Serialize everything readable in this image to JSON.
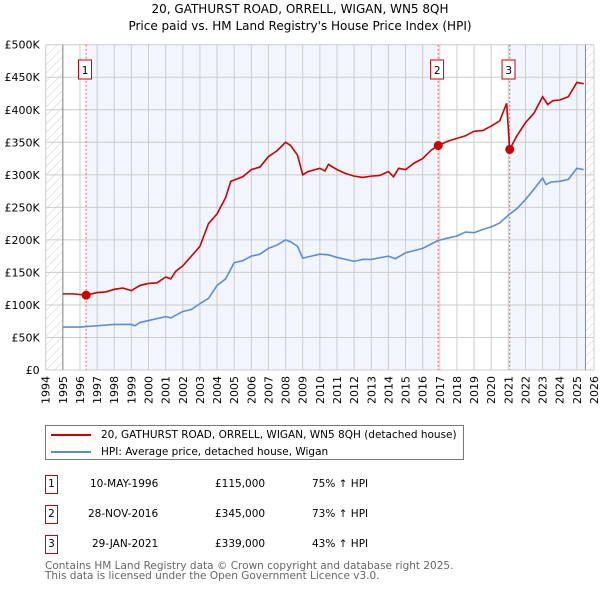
{
  "chart_data": {
    "type": "line",
    "title": "20, GATHURST ROAD, ORRELL, WIGAN, WN5 8QH",
    "subtitle": "Price paid vs. HM Land Registry's House Price Index (HPI)",
    "xlim": [
      1994,
      2026
    ],
    "ylim": [
      0,
      500000
    ],
    "x_ticks": [
      "1994",
      "1995",
      "1996",
      "1997",
      "1998",
      "1999",
      "2000",
      "2001",
      "2002",
      "2003",
      "2004",
      "2005",
      "2006",
      "2007",
      "2008",
      "2009",
      "2010",
      "2011",
      "2012",
      "2013",
      "2014",
      "2015",
      "2016",
      "2017",
      "2018",
      "2019",
      "2020",
      "2021",
      "2022",
      "2023",
      "2024",
      "2025",
      "2026"
    ],
    "y_ticks": [
      {
        "v": 0,
        "label": "£0"
      },
      {
        "v": 50000,
        "label": "£50K"
      },
      {
        "v": 100000,
        "label": "£100K"
      },
      {
        "v": 150000,
        "label": "£150K"
      },
      {
        "v": 200000,
        "label": "£200K"
      },
      {
        "v": 250000,
        "label": "£250K"
      },
      {
        "v": 300000,
        "label": "£300K"
      },
      {
        "v": 350000,
        "label": "£350K"
      },
      {
        "v": 400000,
        "label": "£400K"
      },
      {
        "v": 450000,
        "label": "£450K"
      },
      {
        "v": 500000,
        "label": "£500K"
      }
    ],
    "grid": true,
    "data_start": 1995,
    "data_end": 2025.5,
    "series": [
      {
        "name": "20, GATHURST ROAD, ORRELL, WIGAN, WN5 8QH (detached house)",
        "color": "#cc0000",
        "x": [
          1995,
          1995.6,
          1996.36,
          1997,
          1997.5,
          1998,
          1998.5,
          1999,
          1999.5,
          2000,
          2000.5,
          2001,
          2001.3,
          2001.6,
          2002,
          2002.5,
          2003,
          2003.5,
          2004,
          2004.5,
          2004.8,
          2005.5,
          2006,
          2006.5,
          2007,
          2007.5,
          2008,
          2008.3,
          2008.7,
          2009,
          2009.3,
          2010,
          2010.3,
          2010.5,
          2011,
          2011.5,
          2012,
          2012.5,
          2013,
          2013.5,
          2014,
          2014.3,
          2014.6,
          2015,
          2015.5,
          2016,
          2016.5,
          2016.9,
          2017.5,
          2018,
          2018.5,
          2019,
          2019.5,
          2020,
          2020.5,
          2020.9,
          2021.08,
          2021.5,
          2022,
          2022.5,
          2023,
          2023.3,
          2023.6,
          2024,
          2024.5,
          2025,
          2025.4
        ],
        "y": [
          117000,
          117000,
          115000,
          119000,
          120000,
          124000,
          126000,
          122000,
          130000,
          133000,
          134000,
          143000,
          140000,
          152000,
          160000,
          175000,
          190000,
          225000,
          240000,
          265000,
          290000,
          297000,
          308000,
          312000,
          328000,
          337000,
          350000,
          345000,
          330000,
          300000,
          305000,
          310000,
          306000,
          316000,
          308000,
          302000,
          298000,
          296000,
          298000,
          299000,
          305000,
          297000,
          310000,
          308000,
          318000,
          325000,
          338000,
          345000,
          352000,
          356000,
          360000,
          367000,
          368000,
          375000,
          383000,
          410000,
          339000,
          360000,
          380000,
          395000,
          420000,
          408000,
          414000,
          415000,
          420000,
          442000,
          440000
        ]
      },
      {
        "name": "HPI: Average price, detached house, Wigan",
        "color": "#5b8dd6",
        "x": [
          1995,
          1996,
          1997,
          1998,
          1999,
          1999.2,
          1999.5,
          2000,
          2001,
          2001.3,
          2002,
          2002.5,
          2003,
          2003.5,
          2004,
          2004.5,
          2005,
          2005.5,
          2006,
          2006.5,
          2007,
          2007.5,
          2008,
          2008.3,
          2008.7,
          2009,
          2009.5,
          2010,
          2010.5,
          2011,
          2011.5,
          2012,
          2012.5,
          2013,
          2014,
          2014.4,
          2015,
          2016,
          2016.9,
          2017.5,
          2018,
          2018.5,
          2019,
          2019.5,
          2020,
          2020.5,
          2021,
          2021.5,
          2022,
          2022.5,
          2023,
          2023.2,
          2023.5,
          2024,
          2024.5,
          2025,
          2025.4
        ],
        "y": [
          66000,
          66000,
          68000,
          70000,
          70000,
          68000,
          73000,
          76000,
          82000,
          80000,
          90000,
          93000,
          102000,
          110000,
          130000,
          140000,
          165000,
          168000,
          175000,
          178000,
          187000,
          192000,
          200000,
          197000,
          190000,
          172000,
          175000,
          178000,
          177000,
          173000,
          170000,
          167000,
          170000,
          170000,
          175000,
          171000,
          180000,
          187000,
          199000,
          203000,
          206000,
          212000,
          211000,
          216000,
          220000,
          226000,
          238000,
          248000,
          262000,
          278000,
          295000,
          285000,
          289000,
          290000,
          293000,
          310000,
          308000
        ]
      }
    ],
    "sales": [
      {
        "id": "1",
        "x": 1996.36,
        "y": 115000,
        "date": "10-MAY-1996",
        "price": "£115,000",
        "hpi": "75% ↑ HPI"
      },
      {
        "id": "2",
        "x": 2016.91,
        "y": 345000,
        "date": "28-NOV-2016",
        "price": "£345,000",
        "hpi": "73% ↑ HPI"
      },
      {
        "id": "3",
        "x": 2021.08,
        "y": 339000,
        "date": "29-JAN-2021",
        "price": "£339,000",
        "hpi": "43% ↑ HPI"
      }
    ]
  },
  "footer": {
    "line1": "Contains HM Land Registry data © Crown copyright and database right 2025.",
    "line2": "This data is licensed under the Open Government Licence v3.0."
  }
}
